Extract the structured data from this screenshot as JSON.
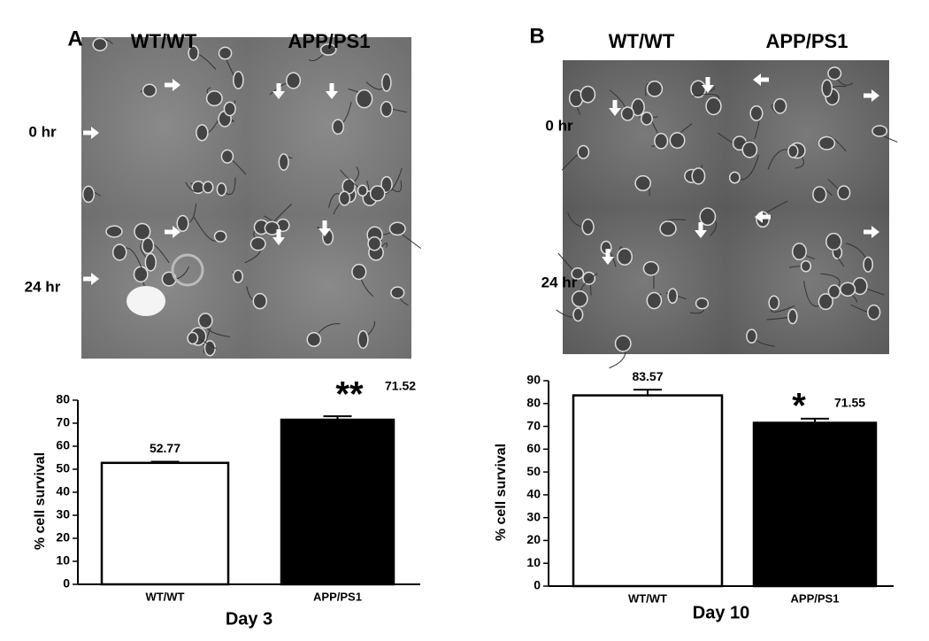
{
  "panels": [
    {
      "label": "A",
      "columns": [
        "WT/WT",
        "APP/PS1"
      ],
      "rows": [
        "0 hr",
        "24 hr"
      ]
    },
    {
      "label": "B",
      "columns": [
        "WT/WT",
        "APP/PS1"
      ],
      "rows": [
        "0 hr",
        "24 hr"
      ]
    }
  ],
  "chart_data": [
    {
      "type": "bar",
      "title": "Day 3",
      "y_label": "% cell survival",
      "categories": [
        "WT/WT",
        "APP/PS1"
      ],
      "values": [
        52.77,
        71.52
      ],
      "errors": [
        0.5,
        1.5
      ],
      "colors": [
        "#ffffff",
        "#000000"
      ],
      "annotation": "**",
      "ylim": [
        0,
        80
      ],
      "yticks": [
        0,
        10,
        20,
        30,
        40,
        50,
        60,
        70,
        80
      ]
    },
    {
      "type": "bar",
      "title": "Day 10",
      "y_label": "% cell survival",
      "categories": [
        "WT/WT",
        "APP/PS1"
      ],
      "values": [
        83.57,
        71.55
      ],
      "errors": [
        2.5,
        1.8
      ],
      "colors": [
        "#ffffff",
        "#000000"
      ],
      "annotation": "*",
      "ylim": [
        0,
        90
      ],
      "yticks": [
        0,
        10,
        20,
        30,
        40,
        50,
        60,
        70,
        80,
        90
      ]
    }
  ]
}
